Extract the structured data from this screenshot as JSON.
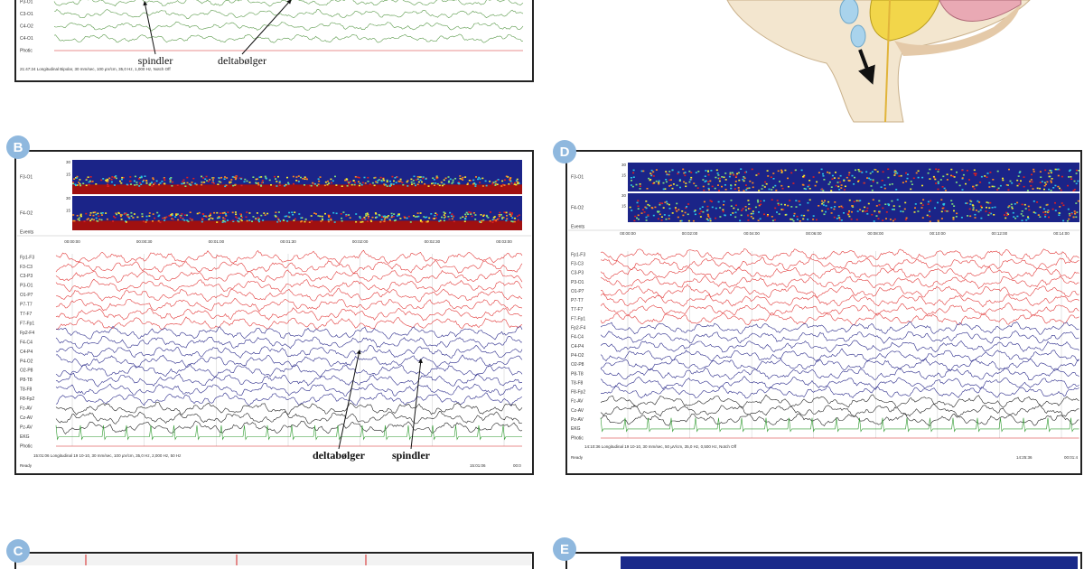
{
  "panels": [
    {
      "label": null,
      "channels": [
        "P3-O1",
        "C3-O1",
        "C4-O2",
        "C4-O1",
        "Photic"
      ],
      "footer": "21:47:24 Longitudinal Bipolar, 30 mm/sec, 100 µV/cm, 35,0 Hz, 1,000 Hz, Notch Off",
      "annotations": [
        "spindler",
        "deltabølger"
      ]
    },
    {
      "label": "B",
      "spectrogram_channels": [
        "F3-O1",
        "F4-O2"
      ],
      "spectrogram_scale": [
        "30",
        "15"
      ],
      "events_label": "Events",
      "time_labels": [
        "00:00:00",
        "00:00:30",
        "00:01:00",
        "00:01:30",
        "00:02:00",
        "00:02:30",
        "00:03:00"
      ],
      "channels": [
        "Fp1-F3",
        "F3-C3",
        "C3-P3",
        "P3-O1",
        "O1-P7",
        "P7-T7",
        "T7-F7",
        "F7-Fp1",
        "Fp2-F4",
        "F4-C4",
        "C4-P4",
        "P4-O2",
        "O2-P8",
        "P8-T8",
        "T8-F8",
        "F8-Fp2",
        "Fz-AV",
        "Cz-AV",
        "Pz-AV",
        "EKG",
        "Photic"
      ],
      "footer": "15:01:06 Longitudinal 19 10-10, 30 mm/sec, 100 µV/cm, 35,0 Hz, 2,000 Hz, 50 Hz",
      "status": [
        "Ready",
        "15:01:06",
        "00:0"
      ],
      "annotations": [
        "deltabølger",
        "spindler"
      ]
    },
    {
      "label": "D",
      "spectrogram_channels": [
        "F3-O1",
        "F4-O2"
      ],
      "spectrogram_scale": [
        "30",
        "15"
      ],
      "events_label": "Events",
      "time_labels": [
        "00:00:00",
        "00:02:00",
        "00:04:00",
        "00:06:00",
        "00:08:00",
        "00:10:00",
        "00:12:00",
        "00:14:00"
      ],
      "channels": [
        "Fp1-F3",
        "F3-C3",
        "C3-P3",
        "P3-O1",
        "O1-P7",
        "P7-T7",
        "T7-F7",
        "F7-Fp1",
        "Fp2-F4",
        "F4-C4",
        "C4-P4",
        "P4-O2",
        "O2-P8",
        "P8-T8",
        "T8-F8",
        "F8-Fp2",
        "Fz-AV",
        "Cz-AV",
        "Pz-AV",
        "EKG",
        "Photic"
      ],
      "footer": "14:10:36 Longitudinal 19 10-10, 30 mm/sec, 50 µV/cm, 35,0 Hz, 0,500 Hz, Notch Off",
      "status": [
        "Ready",
        "14:25:36",
        "00:01:4"
      ],
      "annotations": []
    },
    {
      "label": "C"
    },
    {
      "label": "E"
    }
  ]
}
